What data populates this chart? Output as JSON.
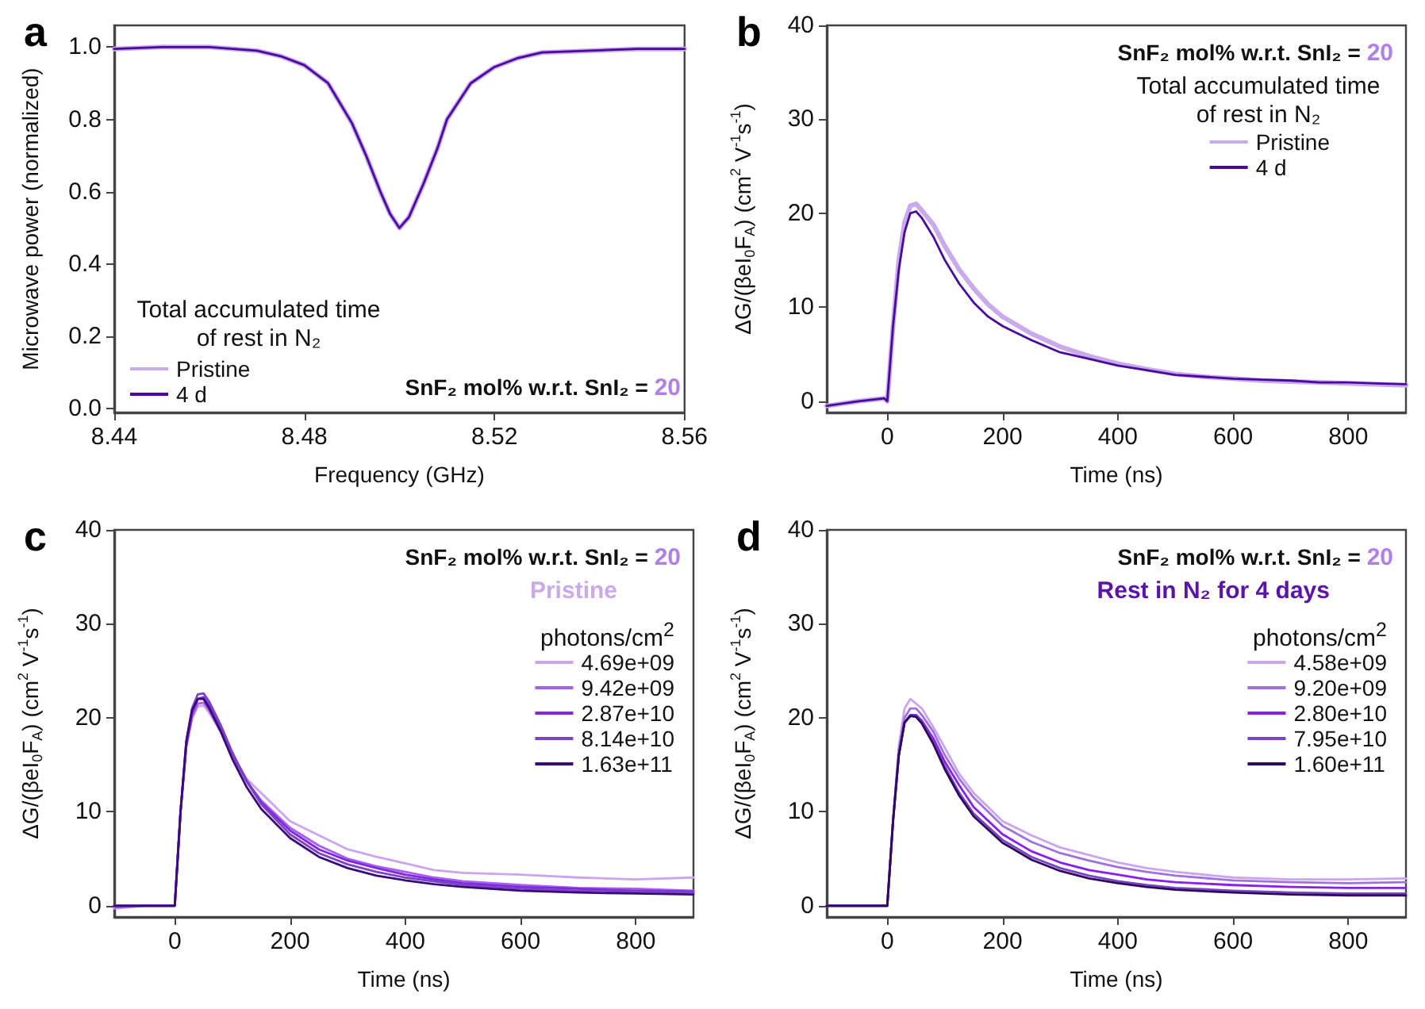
{
  "chart_data": [
    {
      "type": "line",
      "title": "a",
      "xlabel": "Frequency (GHz)",
      "ylabel": "Microwave power (normalized)",
      "legend_title": "Total accumulated time of rest in N₂",
      "annotations": [
        "SnF₂ mol% w.r.t. SnI₂ = 20"
      ],
      "x": [
        8.44,
        8.45,
        8.46,
        8.47,
        8.475,
        8.48,
        8.485,
        8.49,
        8.493,
        8.496,
        8.498,
        8.5,
        8.502,
        8.505,
        8.508,
        8.51,
        8.515,
        8.52,
        8.525,
        8.53,
        8.54,
        8.55,
        8.56
      ],
      "series": [
        {
          "name": "Pristine",
          "color": "#c9aaea",
          "values": [
            0.995,
            1.0,
            1.0,
            0.99,
            0.975,
            0.95,
            0.9,
            0.79,
            0.7,
            0.6,
            0.54,
            0.5,
            0.53,
            0.62,
            0.72,
            0.8,
            0.9,
            0.945,
            0.97,
            0.985,
            0.99,
            0.995,
            0.995
          ]
        },
        {
          "name": "4 d",
          "color": "#4a0aa0",
          "values": [
            0.995,
            1.0,
            1.0,
            0.99,
            0.975,
            0.95,
            0.9,
            0.79,
            0.7,
            0.6,
            0.54,
            0.5,
            0.53,
            0.62,
            0.72,
            0.8,
            0.9,
            0.945,
            0.97,
            0.985,
            0.99,
            0.995,
            0.995
          ]
        }
      ],
      "xlim": [
        8.44,
        8.56
      ],
      "xticks": [
        8.44,
        8.48,
        8.52,
        8.56
      ],
      "ylim": [
        -0.01,
        1.06
      ],
      "yticks": [
        {
          "value": 0,
          "label": "0.0"
        },
        0.2,
        0.4,
        0.6,
        0.8,
        {
          "value": 1,
          "label": "1.0"
        }
      ],
      "legend": "bottom left"
    },
    {
      "type": "line",
      "title": "b",
      "xlabel": "Time (ns)",
      "ylabel": "ΔG/(βeI$_{0}$F$_{A}$) (cm$^{2}$ V$^{-1}$s$^{-1}$)",
      "legend_title": "Total accumulated time of rest in N₂",
      "annotations": [
        "SnF₂ mol% w.r.t. SnI₂ = 20"
      ],
      "x": [
        -105,
        -50,
        -5,
        0,
        10,
        20,
        30,
        40,
        50,
        60,
        80,
        100,
        125,
        150,
        175,
        200,
        250,
        300,
        350,
        400,
        450,
        500,
        550,
        600,
        650,
        700,
        750,
        800,
        850,
        900
      ],
      "series": [
        {
          "name": "Pristine",
          "color": "#c9aaea",
          "values": [
            -0.5,
            0,
            0.3,
            0,
            8,
            15,
            19,
            20.8,
            21,
            20.3,
            18.8,
            16.5,
            14,
            12,
            10.3,
            9,
            7.2,
            5.8,
            4.8,
            4,
            3.4,
            2.9,
            2.6,
            2.4,
            2.2,
            2.1,
            2,
            1.9,
            1.8,
            1.7
          ]
        },
        {
          "name": "4 d",
          "color": "#4a0aa0",
          "values": [
            -0.5,
            0,
            0.3,
            0,
            8,
            14,
            18,
            20,
            20.2,
            19.5,
            17.5,
            15,
            12.5,
            10.5,
            9,
            8,
            6.5,
            5.2,
            4.5,
            3.8,
            3.3,
            2.8,
            2.6,
            2.4,
            2.3,
            2.2,
            2,
            2,
            1.9,
            1.8
          ]
        }
      ],
      "xlim": [
        -105,
        900
      ],
      "xticks": [
        0,
        200,
        400,
        600,
        800
      ],
      "ylim": [
        -1.2,
        40
      ],
      "yticks": [
        0,
        10,
        20,
        30,
        40
      ],
      "legend": "top right"
    },
    {
      "type": "line",
      "title": "c",
      "subtitle": "Pristine",
      "xlabel": "Time (ns)",
      "ylabel": "ΔG/(βeI$_{0}$F$_{A}$) (cm$^{2}$ V$^{-1}$s$^{-1}$)",
      "legend_title": "photons/cm$^{2}$",
      "annotations": [
        "SnF₂ mol% w.r.t. SnI₂ = 20"
      ],
      "x": [
        -105,
        -50,
        0,
        10,
        20,
        30,
        40,
        50,
        60,
        80,
        100,
        125,
        150,
        200,
        250,
        300,
        350,
        400,
        450,
        500,
        600,
        700,
        800,
        900
      ],
      "series": [
        {
          "name": "4.69e+09",
          "color": "#c9a6ee",
          "values": [
            -0.3,
            0,
            0,
            10,
            17,
            20,
            21.2,
            21.3,
            20.5,
            18.5,
            16,
            13.5,
            12,
            9,
            7.5,
            6,
            5.2,
            4.5,
            3.8,
            3.5,
            3.3,
            3,
            2.8,
            3
          ]
        },
        {
          "name": "9.42e+09",
          "color": "#a65ff0",
          "values": [
            -0.2,
            0,
            0,
            10,
            17,
            20,
            21.5,
            21.6,
            20.8,
            18.5,
            16,
            13.2,
            11.2,
            8.3,
            6.4,
            5,
            4.2,
            3.6,
            3,
            2.6,
            2.2,
            1.9,
            1.8,
            1.6
          ]
        },
        {
          "name": "2.87e+10",
          "color": "#8226e0",
          "values": [
            0,
            0,
            0,
            10,
            17,
            20.5,
            22,
            22.2,
            21.3,
            19,
            16.2,
            13.3,
            11,
            8,
            6,
            4.8,
            4,
            3.3,
            2.8,
            2.4,
            2,
            1.8,
            1.6,
            1.5
          ]
        },
        {
          "name": "8.14e+10",
          "color": "#7a44c4",
          "values": [
            0,
            0,
            0,
            10,
            17.5,
            21,
            22.5,
            22.6,
            21.7,
            19.2,
            16.3,
            13.2,
            10.8,
            7.6,
            5.6,
            4.4,
            3.6,
            3,
            2.6,
            2.2,
            1.8,
            1.6,
            1.5,
            1.4
          ]
        },
        {
          "name": "1.63e+11",
          "color": "#3a0a7a",
          "values": [
            0,
            0,
            0,
            10,
            17.5,
            20.8,
            22,
            22,
            21,
            18.5,
            15.6,
            12.6,
            10.3,
            7.2,
            5.2,
            4,
            3.2,
            2.7,
            2.3,
            2,
            1.6,
            1.4,
            1.3,
            1.2
          ]
        }
      ],
      "xlim": [
        -105,
        900
      ],
      "xticks": [
        0,
        200,
        400,
        600,
        800
      ],
      "ylim": [
        -1.2,
        40
      ],
      "yticks": [
        0,
        10,
        20,
        30,
        40
      ],
      "legend": "top right"
    },
    {
      "type": "line",
      "title": "d",
      "subtitle": "Rest in N₂ for 4 days",
      "xlabel": "Time (ns)",
      "ylabel": "ΔG/(βeI$_{0}$F$_{A}$) (cm$^{2}$ V$^{-1}$s$^{-1}$)",
      "legend_title": "photons/cm$^{2}$",
      "annotations": [
        "SnF₂ mol% w.r.t. SnI₂ = 20"
      ],
      "x": [
        -105,
        -50,
        0,
        10,
        20,
        30,
        40,
        50,
        60,
        80,
        100,
        125,
        150,
        200,
        250,
        300,
        350,
        400,
        450,
        500,
        600,
        700,
        800,
        900
      ],
      "series": [
        {
          "name": "4.58e+09",
          "color": "#c9a6ee",
          "values": [
            0,
            0,
            0,
            9,
            17,
            21,
            22,
            21.5,
            21,
            19,
            16.8,
            14,
            12,
            9,
            7.5,
            6.2,
            5.4,
            4.6,
            4,
            3.6,
            3,
            2.8,
            2.8,
            2.9
          ]
        },
        {
          "name": "9.20e+09",
          "color": "#a070e0",
          "values": [
            0,
            0,
            0,
            9,
            16.5,
            20,
            21,
            21,
            20.3,
            18.5,
            16,
            13.5,
            11.5,
            8.5,
            6.8,
            5.6,
            4.8,
            4.1,
            3.6,
            3.2,
            2.7,
            2.5,
            2.4,
            2.5
          ]
        },
        {
          "name": "2.80e+10",
          "color": "#8a1ef0",
          "values": [
            0,
            0,
            0,
            9,
            16,
            19.5,
            20.3,
            20.3,
            19.7,
            17.8,
            15.3,
            12.8,
            10.5,
            7.6,
            5.8,
            4.6,
            3.8,
            3.3,
            2.8,
            2.5,
            2.2,
            2,
            1.9,
            1.9
          ]
        },
        {
          "name": "7.95e+10",
          "color": "#7a44c4",
          "values": [
            0,
            0,
            0,
            9,
            16,
            19.5,
            20.2,
            20.2,
            19.5,
            17.4,
            14.8,
            12,
            9.8,
            7,
            5.2,
            4,
            3.2,
            2.6,
            2.2,
            1.9,
            1.6,
            1.4,
            1.3,
            1.3
          ]
        },
        {
          "name": "1.60e+11",
          "color": "#2e0a5e",
          "values": [
            0,
            0,
            0,
            9,
            16,
            19.5,
            20.2,
            20.1,
            19.4,
            17.2,
            14.5,
            11.7,
            9.5,
            6.7,
            4.9,
            3.7,
            2.9,
            2.4,
            2,
            1.7,
            1.4,
            1.2,
            1.1,
            1.1
          ]
        }
      ],
      "xlim": [
        -105,
        900
      ],
      "xticks": [
        0,
        200,
        400,
        600,
        800
      ],
      "ylim": [
        -1.2,
        40
      ],
      "yticks": [
        0,
        10,
        20,
        30,
        40
      ],
      "legend": "top right"
    }
  ]
}
